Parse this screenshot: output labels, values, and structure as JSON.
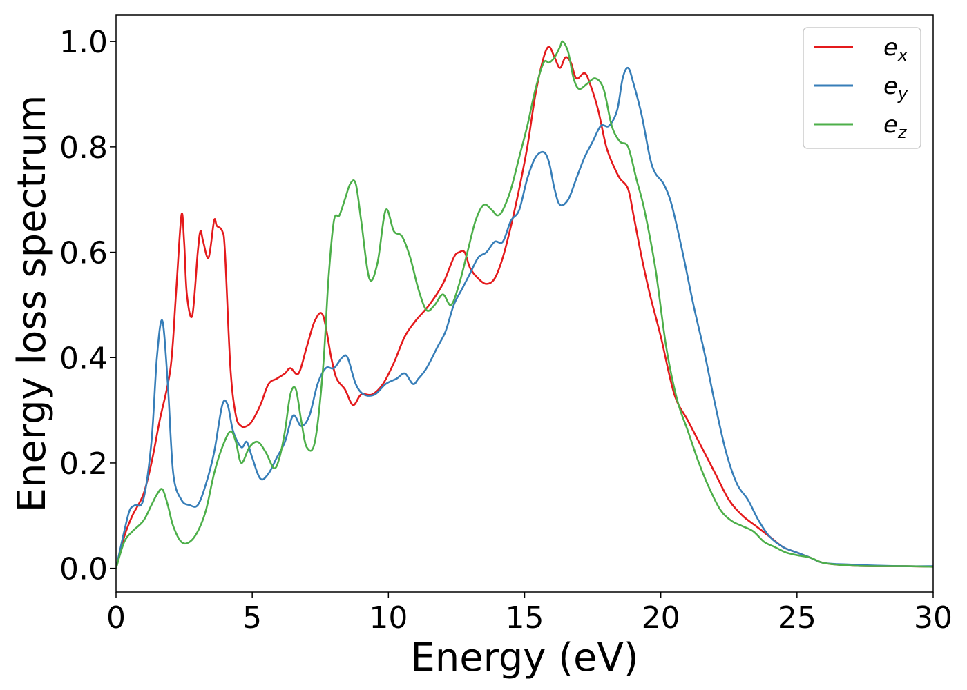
{
  "chart_data": {
    "type": "line",
    "title": "",
    "xlabel": "Energy (eV)",
    "ylabel": "Energy loss spectrum",
    "xlim": [
      0,
      30
    ],
    "ylim": [
      -0.045,
      1.05
    ],
    "xticks": [
      0,
      5,
      10,
      15,
      20,
      25,
      30
    ],
    "xtick_labels": [
      "0",
      "5",
      "10",
      "15",
      "20",
      "25",
      "30"
    ],
    "yticks": [
      0.0,
      0.2,
      0.4,
      0.6,
      0.8,
      1.0
    ],
    "ytick_labels": [
      "0.0",
      "0.2",
      "0.4",
      "0.6",
      "0.8",
      "1.0"
    ],
    "grid": false,
    "legend_position": "top-right",
    "series": [
      {
        "name": "e_x",
        "label_base": "e",
        "label_sub": "x",
        "color": "#e41a1c",
        "x": [
          0,
          0.3,
          0.6,
          1.0,
          1.3,
          1.6,
          2.0,
          2.2,
          2.4,
          2.5,
          2.6,
          2.8,
          3.0,
          3.1,
          3.2,
          3.4,
          3.6,
          3.7,
          3.9,
          4.0,
          4.2,
          4.4,
          4.6,
          4.8,
          5.0,
          5.3,
          5.6,
          5.9,
          6.2,
          6.4,
          6.7,
          7.0,
          7.3,
          7.6,
          7.9,
          8.1,
          8.4,
          8.7,
          9.0,
          9.4,
          9.8,
          10.2,
          10.6,
          11.0,
          11.5,
          12.0,
          12.4,
          12.6,
          12.8,
          13.0,
          13.3,
          13.6,
          13.9,
          14.2,
          14.5,
          14.8,
          15.1,
          15.4,
          15.7,
          15.9,
          16.1,
          16.3,
          16.5,
          16.7,
          16.9,
          17.2,
          17.4,
          17.7,
          18.0,
          18.3,
          18.5,
          18.8,
          19.0,
          19.3,
          19.6,
          20.0,
          20.5,
          21.0,
          21.5,
          22.0,
          22.5,
          23.0,
          23.5,
          24.0,
          24.5,
          25.0,
          25.5,
          26.0,
          27.0,
          28.0,
          29.0,
          30.0
        ],
        "y": [
          0.0,
          0.06,
          0.1,
          0.14,
          0.2,
          0.28,
          0.38,
          0.52,
          0.67,
          0.62,
          0.52,
          0.48,
          0.6,
          0.64,
          0.62,
          0.59,
          0.66,
          0.65,
          0.64,
          0.6,
          0.38,
          0.29,
          0.27,
          0.27,
          0.28,
          0.31,
          0.35,
          0.36,
          0.37,
          0.38,
          0.37,
          0.42,
          0.47,
          0.48,
          0.4,
          0.36,
          0.34,
          0.31,
          0.33,
          0.33,
          0.35,
          0.39,
          0.44,
          0.47,
          0.5,
          0.54,
          0.59,
          0.6,
          0.6,
          0.57,
          0.55,
          0.54,
          0.55,
          0.59,
          0.65,
          0.72,
          0.8,
          0.9,
          0.97,
          0.99,
          0.97,
          0.95,
          0.97,
          0.96,
          0.93,
          0.94,
          0.92,
          0.87,
          0.8,
          0.76,
          0.74,
          0.72,
          0.67,
          0.59,
          0.52,
          0.44,
          0.33,
          0.28,
          0.23,
          0.18,
          0.13,
          0.1,
          0.08,
          0.06,
          0.04,
          0.03,
          0.02,
          0.01,
          0.005,
          0.004,
          0.004,
          0.003
        ]
      },
      {
        "name": "e_y",
        "label_base": "e",
        "label_sub": "y",
        "color": "#377eb8",
        "x": [
          0,
          0.3,
          0.5,
          0.7,
          1.0,
          1.3,
          1.5,
          1.7,
          1.9,
          2.1,
          2.4,
          2.7,
          3.0,
          3.3,
          3.6,
          3.9,
          4.1,
          4.3,
          4.6,
          4.8,
          5.0,
          5.3,
          5.6,
          5.9,
          6.2,
          6.5,
          6.8,
          7.1,
          7.4,
          7.7,
          8.0,
          8.3,
          8.5,
          8.8,
          9.1,
          9.5,
          9.9,
          10.3,
          10.6,
          10.9,
          11.1,
          11.4,
          11.8,
          12.1,
          12.4,
          12.7,
          13.0,
          13.3,
          13.6,
          13.9,
          14.2,
          14.5,
          14.8,
          15.1,
          15.4,
          15.7,
          15.9,
          16.1,
          16.3,
          16.6,
          16.9,
          17.2,
          17.5,
          17.8,
          18.1,
          18.4,
          18.6,
          18.8,
          19.0,
          19.3,
          19.6,
          19.8,
          20.1,
          20.4,
          20.8,
          21.2,
          21.6,
          22.0,
          22.4,
          22.8,
          23.2,
          23.6,
          24.0,
          24.5,
          25.0,
          25.5,
          26.0,
          27.0,
          28.0,
          29.0,
          30.0
        ],
        "y": [
          0.0,
          0.07,
          0.11,
          0.12,
          0.13,
          0.24,
          0.4,
          0.47,
          0.35,
          0.18,
          0.13,
          0.12,
          0.12,
          0.16,
          0.22,
          0.31,
          0.31,
          0.26,
          0.23,
          0.24,
          0.21,
          0.17,
          0.18,
          0.21,
          0.24,
          0.29,
          0.27,
          0.29,
          0.35,
          0.38,
          0.38,
          0.4,
          0.4,
          0.35,
          0.33,
          0.33,
          0.35,
          0.36,
          0.37,
          0.35,
          0.36,
          0.38,
          0.42,
          0.45,
          0.5,
          0.53,
          0.56,
          0.59,
          0.6,
          0.62,
          0.62,
          0.66,
          0.68,
          0.74,
          0.78,
          0.79,
          0.77,
          0.72,
          0.69,
          0.7,
          0.74,
          0.78,
          0.81,
          0.84,
          0.84,
          0.87,
          0.93,
          0.95,
          0.92,
          0.86,
          0.78,
          0.75,
          0.73,
          0.69,
          0.6,
          0.5,
          0.41,
          0.31,
          0.22,
          0.16,
          0.13,
          0.09,
          0.06,
          0.04,
          0.03,
          0.02,
          0.01,
          0.007,
          0.005,
          0.004,
          0.004
        ]
      },
      {
        "name": "e_z",
        "label_base": "e",
        "label_sub": "z",
        "color": "#4daf4a",
        "x": [
          0,
          0.3,
          0.6,
          1.0,
          1.3,
          1.5,
          1.7,
          1.9,
          2.1,
          2.4,
          2.7,
          3.0,
          3.3,
          3.6,
          3.9,
          4.2,
          4.4,
          4.6,
          4.9,
          5.2,
          5.5,
          5.8,
          6.0,
          6.2,
          6.4,
          6.6,
          6.8,
          7.0,
          7.3,
          7.6,
          7.8,
          8.0,
          8.2,
          8.4,
          8.6,
          8.8,
          9.0,
          9.3,
          9.6,
          9.9,
          10.2,
          10.5,
          10.8,
          11.1,
          11.4,
          11.7,
          12.0,
          12.3,
          12.6,
          12.9,
          13.2,
          13.5,
          13.8,
          14.0,
          14.2,
          14.5,
          14.8,
          15.1,
          15.4,
          15.7,
          15.9,
          16.1,
          16.3,
          16.4,
          16.6,
          16.8,
          17.0,
          17.3,
          17.6,
          17.9,
          18.2,
          18.5,
          18.8,
          19.1,
          19.4,
          19.8,
          20.2,
          20.6,
          21.0,
          21.4,
          21.8,
          22.2,
          22.6,
          23.0,
          23.4,
          23.8,
          24.2,
          24.6,
          25.0,
          25.5,
          26.0,
          27.0,
          28.0,
          29.0,
          30.0
        ],
        "y": [
          0.0,
          0.05,
          0.07,
          0.09,
          0.12,
          0.14,
          0.15,
          0.12,
          0.08,
          0.05,
          0.05,
          0.07,
          0.11,
          0.18,
          0.23,
          0.26,
          0.24,
          0.2,
          0.23,
          0.24,
          0.22,
          0.19,
          0.21,
          0.26,
          0.33,
          0.34,
          0.28,
          0.23,
          0.24,
          0.38,
          0.55,
          0.66,
          0.67,
          0.7,
          0.73,
          0.73,
          0.66,
          0.55,
          0.58,
          0.68,
          0.64,
          0.63,
          0.59,
          0.53,
          0.49,
          0.5,
          0.52,
          0.5,
          0.54,
          0.6,
          0.66,
          0.69,
          0.68,
          0.67,
          0.68,
          0.72,
          0.78,
          0.84,
          0.91,
          0.96,
          0.96,
          0.97,
          0.99,
          1.0,
          0.98,
          0.93,
          0.91,
          0.92,
          0.93,
          0.91,
          0.84,
          0.81,
          0.8,
          0.74,
          0.68,
          0.57,
          0.42,
          0.32,
          0.26,
          0.2,
          0.15,
          0.11,
          0.09,
          0.08,
          0.07,
          0.05,
          0.04,
          0.03,
          0.025,
          0.02,
          0.01,
          0.005,
          0.004,
          0.004,
          0.003
        ]
      }
    ]
  }
}
